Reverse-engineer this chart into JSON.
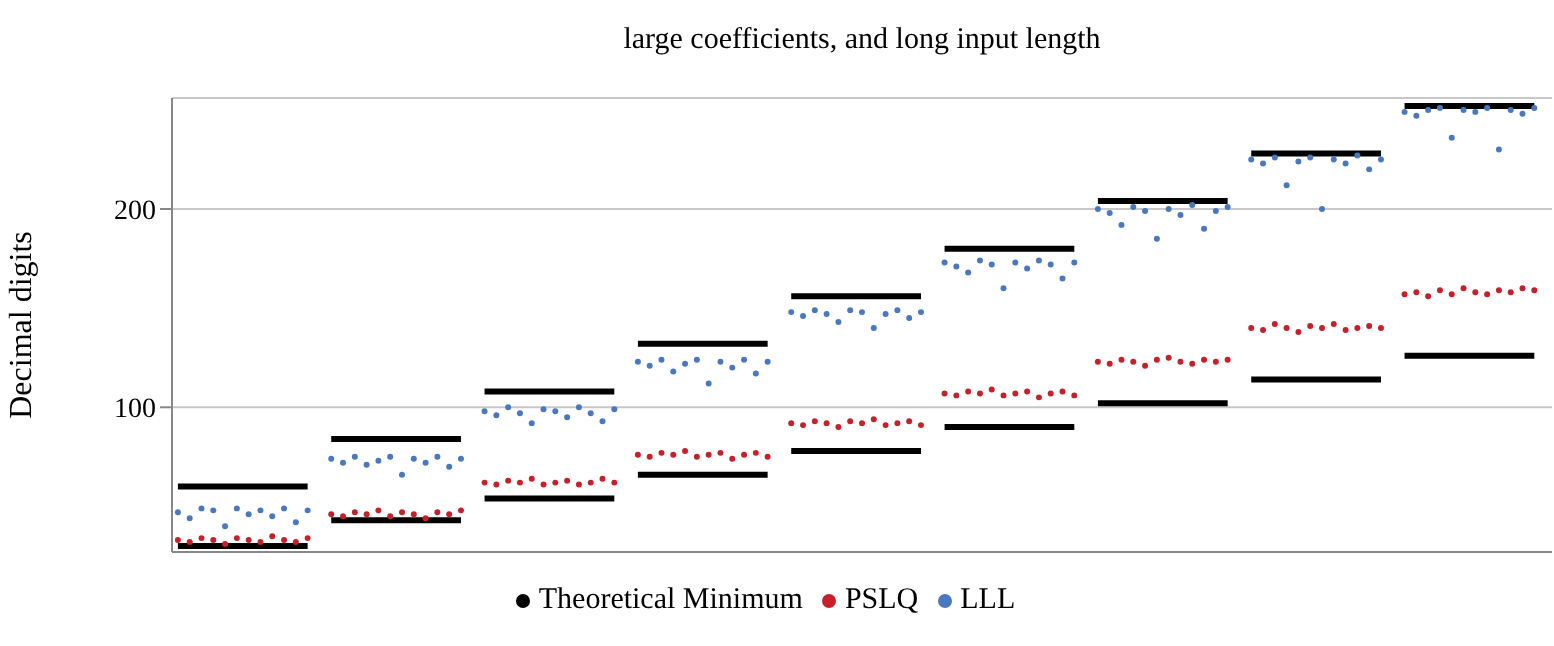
{
  "chart_data": {
    "type": "scatter",
    "title": "large coefficients, and long input length",
    "ylabel": "Decimal digits",
    "ylim": [
      27,
      256
    ],
    "yticks": [
      100,
      200
    ],
    "grid": "y",
    "legend": "bottom",
    "tick_labels": "y",
    "categories": [
      null,
      null,
      null,
      null,
      null,
      null,
      null,
      null,
      null,
      null,
      null,
      null,
      null,
      null,
      null,
      null,
      null,
      null,
      null,
      null,
      null,
      null,
      null,
      null,
      null,
      null,
      null,
      null,
      null,
      null,
      null,
      null,
      null,
      null,
      null,
      null,
      null,
      null,
      null,
      null,
      null,
      null,
      null,
      null,
      null,
      null,
      null,
      null,
      null,
      null,
      null,
      null,
      null,
      null,
      null,
      null,
      null,
      null,
      null,
      null,
      null,
      null,
      null,
      null,
      null,
      null,
      null,
      null,
      null,
      null,
      null,
      null,
      null,
      null,
      null,
      null,
      null,
      null,
      null,
      null,
      null,
      null,
      null,
      null,
      null,
      null,
      null,
      null,
      null,
      null,
      null,
      null,
      null,
      null,
      null,
      null,
      null,
      null,
      null,
      null,
      null,
      null,
      null,
      null,
      null,
      null,
      null,
      null,
      null,
      null,
      null,
      null,
      null,
      null,
      null,
      null,
      null
    ],
    "series": [
      {
        "name": "Theoretical Minimum",
        "type": "line",
        "marker": "none",
        "line_style": "solid",
        "color": "#000000",
        "values": [
          60,
          60,
          60,
          60,
          60,
          60,
          60,
          60,
          60,
          60,
          60,
          60,
          null,
          84,
          84,
          84,
          84,
          84,
          84,
          84,
          84,
          84,
          84,
          84,
          84,
          null,
          108,
          108,
          108,
          108,
          108,
          108,
          108,
          108,
          108,
          108,
          108,
          108,
          null,
          132,
          132,
          132,
          132,
          132,
          132,
          132,
          132,
          132,
          132,
          132,
          132,
          null,
          156,
          156,
          156,
          156,
          156,
          156,
          156,
          156,
          156,
          156,
          156,
          156,
          null,
          180,
          180,
          180,
          180,
          180,
          180,
          180,
          180,
          180,
          180,
          180,
          180,
          null,
          204,
          204,
          204,
          204,
          204,
          204,
          204,
          204,
          204,
          204,
          204,
          204,
          null,
          228,
          228,
          228,
          228,
          228,
          228,
          228,
          228,
          228,
          228,
          228,
          228,
          null,
          252,
          252,
          252,
          252,
          252,
          252,
          252,
          252,
          252,
          252,
          252,
          252,
          null
        ]
      },
      {
        "type": "line",
        "marker": "none",
        "line_style": "solid",
        "color": "#000000",
        "values": [
          30,
          30,
          30,
          30,
          30,
          30,
          30,
          30,
          30,
          30,
          30,
          30,
          null,
          43,
          43,
          43,
          43,
          43,
          43,
          43,
          43,
          43,
          43,
          43,
          43,
          null,
          54,
          54,
          54,
          54,
          54,
          54,
          54,
          54,
          54,
          54,
          54,
          54,
          null,
          66,
          66,
          66,
          66,
          66,
          66,
          66,
          66,
          66,
          66,
          66,
          66,
          null,
          78,
          78,
          78,
          78,
          78,
          78,
          78,
          78,
          78,
          78,
          78,
          78,
          null,
          90,
          90,
          90,
          90,
          90,
          90,
          90,
          90,
          90,
          90,
          90,
          90,
          null,
          102,
          102,
          102,
          102,
          102,
          102,
          102,
          102,
          102,
          102,
          102,
          102,
          null,
          114,
          114,
          114,
          114,
          114,
          114,
          114,
          114,
          114,
          114,
          114,
          114,
          null,
          126,
          126,
          126,
          126,
          126,
          126,
          126,
          126,
          126,
          126,
          126,
          126,
          null
        ]
      },
      {
        "name": "PSLQ",
        "marker": "circle",
        "color": "#c8202a",
        "values": [
          33,
          32,
          34,
          33,
          31,
          34,
          33,
          32,
          35,
          33,
          32,
          34,
          null,
          46,
          45,
          47,
          46,
          48,
          45,
          47,
          46,
          44,
          47,
          46,
          48,
          null,
          62,
          61,
          63,
          62,
          64,
          61,
          62,
          63,
          61,
          62,
          64,
          62,
          null,
          76,
          75,
          77,
          76,
          78,
          75,
          76,
          77,
          74,
          76,
          77,
          75,
          null,
          92,
          91,
          93,
          92,
          90,
          93,
          92,
          94,
          91,
          92,
          93,
          91,
          null,
          107,
          106,
          108,
          107,
          109,
          106,
          107,
          108,
          105,
          107,
          108,
          106,
          null,
          123,
          122,
          124,
          123,
          121,
          124,
          125,
          123,
          122,
          124,
          123,
          124,
          null,
          140,
          139,
          142,
          140,
          138,
          141,
          140,
          142,
          139,
          140,
          141,
          140,
          null,
          157,
          158,
          156,
          159,
          157,
          160,
          158,
          157,
          159,
          158,
          160,
          159,
          null
        ]
      },
      {
        "name": "LLL",
        "marker": "circle",
        "color": "#4a78c0",
        "values": [
          47,
          44,
          49,
          48,
          40,
          49,
          46,
          48,
          45,
          49,
          42,
          48,
          null,
          74,
          72,
          75,
          71,
          73,
          75,
          66,
          74,
          72,
          75,
          70,
          74,
          null,
          98,
          96,
          100,
          97,
          92,
          99,
          98,
          95,
          100,
          97,
          93,
          99,
          null,
          123,
          121,
          124,
          118,
          122,
          124,
          112,
          123,
          120,
          124,
          117,
          123,
          null,
          148,
          146,
          149,
          147,
          143,
          149,
          148,
          140,
          147,
          149,
          145,
          148,
          null,
          173,
          171,
          168,
          174,
          172,
          160,
          173,
          170,
          174,
          172,
          165,
          173,
          null,
          200,
          198,
          192,
          201,
          199,
          185,
          200,
          197,
          202,
          190,
          199,
          201,
          null,
          225,
          223,
          226,
          212,
          224,
          226,
          200,
          225,
          223,
          227,
          220,
          225,
          null,
          249,
          247,
          250,
          251,
          236,
          250,
          249,
          251,
          230,
          250,
          248,
          251,
          null
        ]
      }
    ]
  }
}
